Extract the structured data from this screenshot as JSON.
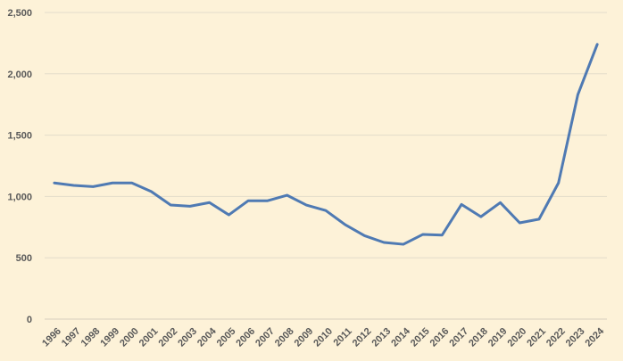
{
  "chart_data": {
    "type": "line",
    "title": "",
    "xlabel": "",
    "ylabel": "",
    "categories": [
      "1996",
      "1997",
      "1998",
      "1999",
      "2000",
      "2001",
      "2002",
      "2003",
      "2004",
      "2005",
      "2006",
      "2007",
      "2008",
      "2009",
      "2010",
      "2011",
      "2012",
      "2013",
      "2014",
      "2015",
      "2016",
      "2017",
      "2018",
      "2019",
      "2020",
      "2021",
      "2022",
      "2023",
      "2024"
    ],
    "series": [
      {
        "values": [
          1110,
          1090,
          1080,
          1110,
          1110,
          1040,
          930,
          920,
          950,
          850,
          965,
          965,
          1010,
          930,
          885,
          770,
          680,
          625,
          610,
          690,
          685,
          935,
          835,
          950,
          785,
          815,
          1110,
          1830,
          2240
        ]
      }
    ],
    "ylim": [
      0,
      2500
    ],
    "yticks": [
      0,
      500,
      1000,
      1500,
      2000,
      2500
    ],
    "ytick_labels": [
      "0",
      "500",
      "1,000",
      "1,500",
      "2,000",
      "2,500"
    ],
    "grid": true,
    "legend": "none",
    "colors": {
      "background": "#fdf2d8",
      "series": "#4f7ab3"
    }
  }
}
